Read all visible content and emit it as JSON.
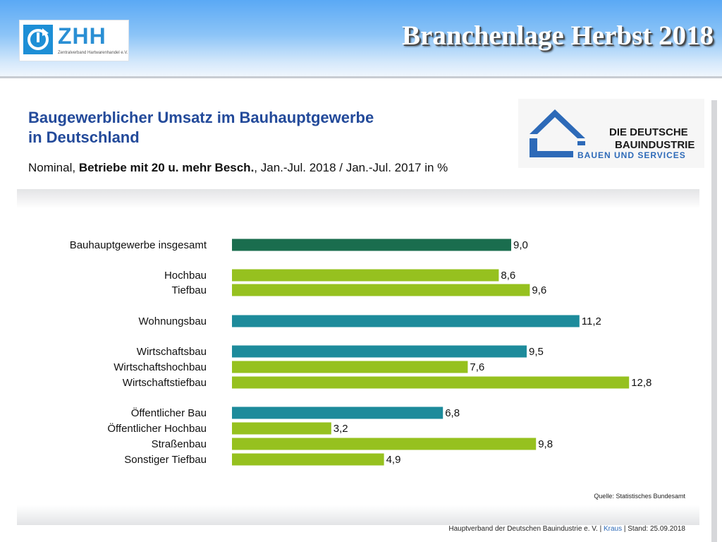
{
  "header": {
    "title": "Branchenlage Herbst 2018",
    "zhh_logo": {
      "text": "ZHH",
      "subtitle": "Zentralverband Hartwarenhandel e.V."
    }
  },
  "slide": {
    "title_line1": "Baugewerblicher Umsatz im Bauhauptgewerbe",
    "title_line2": "in Deutschland",
    "subtitle_a": "Nominal, ",
    "subtitle_b": "Betriebe mit 20 u. mehr Besch.",
    "subtitle_c": ", Jan.-Jul. 2018 / Jan.-Jul. 2017 in %"
  },
  "bi_logo": {
    "line1": "DIE DEUTSCHE",
    "line2": "BAUINDUSTRIE",
    "line3": "BAUEN UND SERVICES"
  },
  "colors": {
    "dark_green": "#1a6d4e",
    "lime": "#96c11f",
    "teal": "#1d8b9b",
    "title_blue": "#234a9a"
  },
  "chart_data": {
    "type": "bar",
    "orientation": "horizontal",
    "categories": [
      "Bauhauptgewerbe insgesamt",
      "Hochbau",
      "Tiefbau",
      "Wohnungsbau",
      "Wirtschaftsbau",
      "Wirtschaftshochbau",
      "Wirtschaftstiefbau",
      "Öffentlicher Bau",
      "Öffentlicher Hochbau",
      "Straßenbau",
      "Sonstiger Tiefbau"
    ],
    "values": [
      9.0,
      8.6,
      9.6,
      11.2,
      9.5,
      7.6,
      12.8,
      6.8,
      3.2,
      9.8,
      4.9
    ],
    "value_labels": [
      "9,0",
      "8,6",
      "9,6",
      "11,2",
      "9,5",
      "7,6",
      "12,8",
      "6,8",
      "3,2",
      "9,8",
      "4,9"
    ],
    "colors": [
      "#1a6d4e",
      "#96c11f",
      "#96c11f",
      "#1d8b9b",
      "#1d8b9b",
      "#96c11f",
      "#96c11f",
      "#1d8b9b",
      "#96c11f",
      "#96c11f",
      "#96c11f"
    ],
    "xlim": [
      0,
      12.8
    ],
    "grid": false
  },
  "source": "Quelle: Statistisches Bundesamt",
  "footer": {
    "org": "Hauptverband der Deutschen Bauindustrie e. V. | ",
    "author": "Kraus",
    "stand": " | Stand: 25.09.2018"
  }
}
